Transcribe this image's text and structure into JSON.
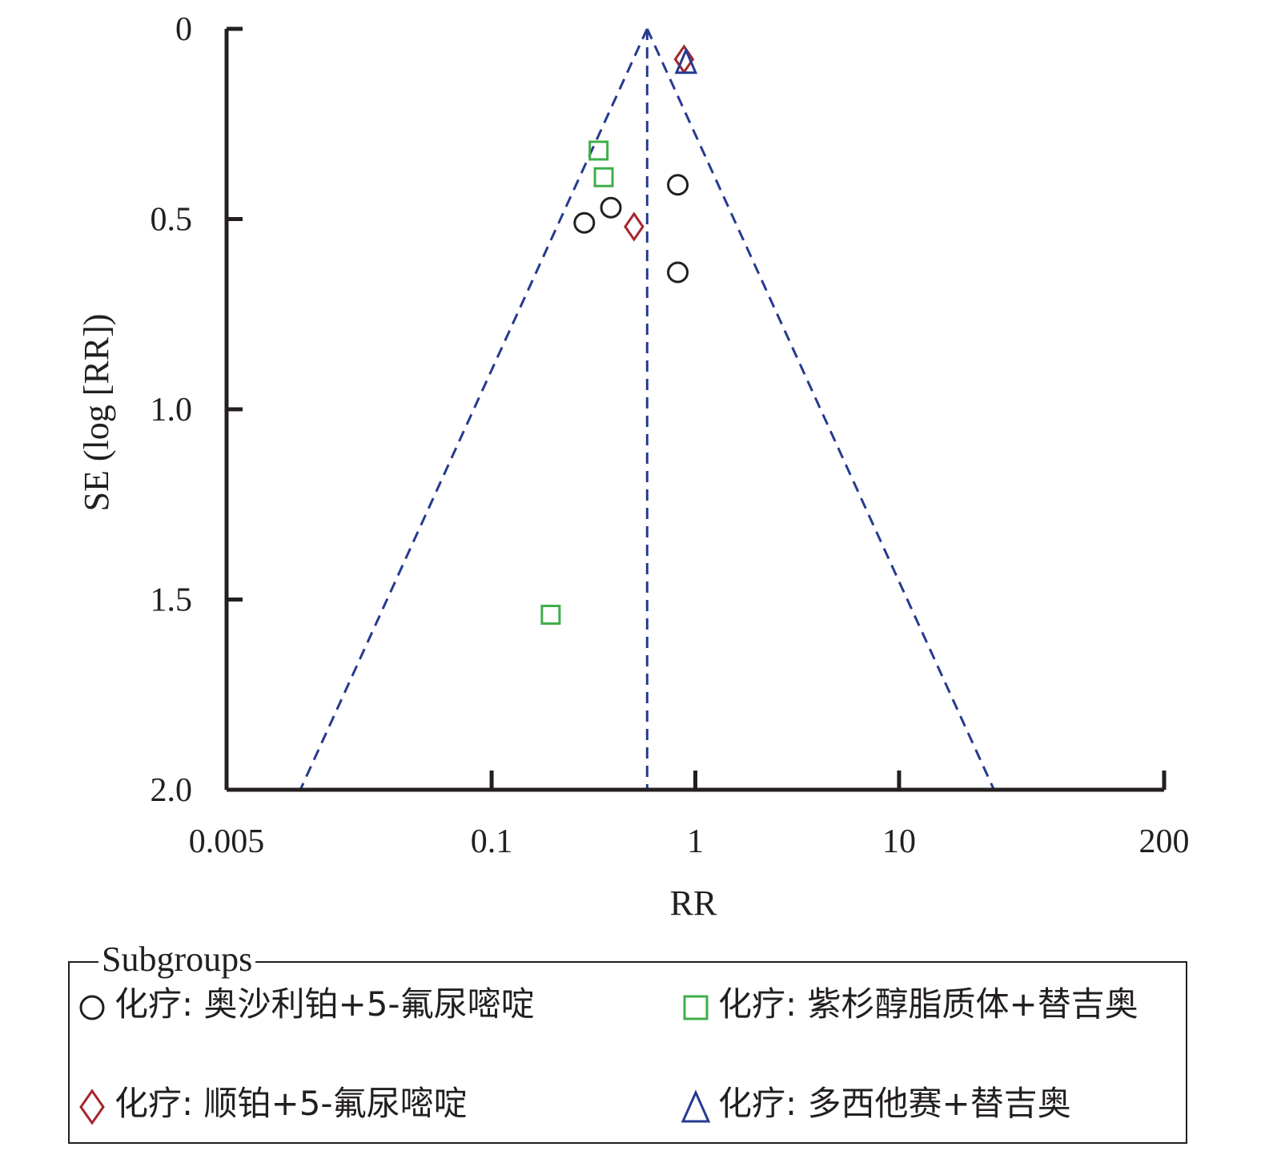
{
  "chart_data": {
    "type": "scatter",
    "subtype": "funnel plot",
    "xlabel": "RR",
    "ylabel": "SE (log [RR])",
    "x_scale": "log",
    "xlim": [
      0.005,
      200
    ],
    "ylim": [
      2.0,
      0
    ],
    "y_reversed": true,
    "x_ticks": [
      {
        "value": 0.005,
        "label": "0.005"
      },
      {
        "value": 0.1,
        "label": "0.1"
      },
      {
        "value": 1,
        "label": "1"
      },
      {
        "value": 10,
        "label": "10"
      },
      {
        "value": 200,
        "label": "200"
      }
    ],
    "y_ticks": [
      {
        "value": 0,
        "label": "0"
      },
      {
        "value": 0.5,
        "label": "0.5"
      },
      {
        "value": 1.0,
        "label": "1.0"
      },
      {
        "value": 1.5,
        "label": "1.5"
      },
      {
        "value": 2.0,
        "label": "2.0"
      }
    ],
    "pooled_rr": 0.58,
    "grid": false,
    "series": [
      {
        "name": "化疗: 奥沙利铂+5-氟尿嘧啶",
        "marker": "circle",
        "color": "#231f20",
        "points": [
          [
            0.285,
            0.51
          ],
          [
            0.385,
            0.47
          ],
          [
            0.82,
            0.41
          ],
          [
            0.82,
            0.64
          ]
        ]
      },
      {
        "name": "化疗: 紫杉醇脂质体+替吉奥",
        "marker": "square",
        "color": "#3fae49",
        "points": [
          [
            0.335,
            0.32
          ],
          [
            0.355,
            0.39
          ],
          [
            0.195,
            1.54
          ]
        ]
      },
      {
        "name": "化疗: 顺铂+5-氟尿嘧啶",
        "marker": "diamond",
        "color": "#a6262e",
        "points": [
          [
            0.88,
            0.08
          ],
          [
            0.5,
            0.52
          ]
        ]
      },
      {
        "name": "化疗: 多西他赛+替吉奥",
        "marker": "triangle",
        "color": "#263a8f",
        "points": [
          [
            0.9,
            0.09
          ]
        ]
      }
    ],
    "funnel_color": "#263a8f",
    "legend": {
      "title": "Subgroups",
      "placement": "bottom",
      "items": [
        {
          "marker": "circle",
          "color": "#231f20",
          "label": "化疗: 奥沙利铂+5-氟尿嘧啶"
        },
        {
          "marker": "square",
          "color": "#3fae49",
          "label": "化疗: 紫杉醇脂质体+替吉奥"
        },
        {
          "marker": "diamond",
          "color": "#a6262e",
          "label": "化疗: 顺铂+5-氟尿嘧啶"
        },
        {
          "marker": "triangle",
          "color": "#263a8f",
          "label": "化疗: 多西他赛+替吉奥"
        }
      ]
    }
  }
}
